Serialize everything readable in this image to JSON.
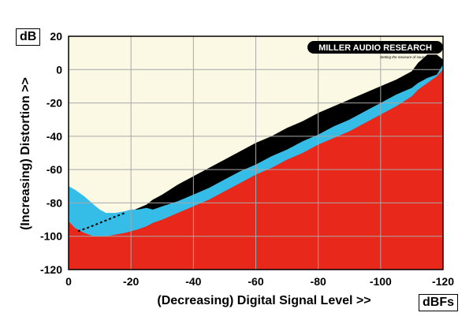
{
  "chart_data": {
    "type": "area",
    "title": "",
    "xlabel": "(Decreasing) Digital Signal Level >>",
    "ylabel": "(Increasing) Distortion >>",
    "x_unit": "dBFs",
    "y_unit": "dB",
    "xlim": [
      0,
      -120
    ],
    "ylim": [
      -120,
      20
    ],
    "x_ticks": [
      "0",
      "-20",
      "-40",
      "-60",
      "-80",
      "-100",
      "-120"
    ],
    "y_ticks": [
      "20",
      "0",
      "-20",
      "-40",
      "-60",
      "-80",
      "-100",
      "-120"
    ],
    "grid": true,
    "logo": {
      "brand": "MILLER AUDIO RESEARCH",
      "tagline": "Setting the measure of sound quality"
    },
    "colors": {
      "background": "#fbf8e3",
      "upper_band": "#000000",
      "middle_band": "#35bde8",
      "lower_area": "#e8281a",
      "dotted_line": "#000000"
    },
    "series": [
      {
        "x": [
          0,
          -2,
          -5,
          -8,
          -10,
          -12,
          -15,
          -18,
          -20,
          -22,
          -25,
          -27,
          -30,
          -35,
          -40,
          -45,
          -50,
          -55,
          -60,
          -65,
          -70,
          -75,
          -80,
          -85,
          -90,
          -95,
          -100,
          -105,
          -110,
          -112,
          -115,
          -118,
          -120
        ],
        "y": [
          -91,
          -95,
          -98,
          -100,
          -100,
          -100,
          -99,
          -98,
          -97,
          -96,
          -94,
          -92,
          -90,
          -86,
          -82,
          -78,
          -73,
          -68,
          -63,
          -59,
          -54,
          -50,
          -45,
          -41,
          -37,
          -32,
          -27,
          -22,
          -16,
          -12,
          -8,
          -4,
          0
        ]
      },
      {
        "x": [
          0,
          -2,
          -5,
          -8,
          -10,
          -12,
          -15,
          -18,
          -20,
          -22,
          -25,
          -27,
          -30,
          -35,
          -40,
          -45,
          -50,
          -55,
          -60,
          -65,
          -70,
          -75,
          -80,
          -85,
          -90,
          -95,
          -100,
          -105,
          -110,
          -112,
          -115,
          -118,
          -120
        ],
        "y": [
          -70,
          -72,
          -76,
          -81,
          -84,
          -86,
          -86,
          -85,
          -84,
          -84,
          -83,
          -84,
          -82,
          -79,
          -75,
          -71,
          -66,
          -61,
          -57,
          -52,
          -48,
          -43,
          -39,
          -34,
          -30,
          -25,
          -20,
          -15,
          -11,
          -8,
          -5,
          -3,
          3
        ]
      },
      {
        "x": [
          -18,
          -20,
          -25,
          -27,
          -30,
          -35,
          -40,
          -45,
          -50,
          -55,
          -60,
          -65,
          -70,
          -75,
          -80,
          -85,
          -90,
          -95,
          -100,
          -105,
          -110,
          -112,
          -115,
          -118,
          -120
        ],
        "y": [
          -86,
          -85,
          -81,
          -78,
          -75,
          -69,
          -64,
          -59,
          -54,
          -49,
          -44,
          -40,
          -35,
          -31,
          -26,
          -22,
          -18,
          -14,
          -10,
          -6,
          -1,
          4,
          9,
          9,
          6
        ]
      },
      {
        "x": [
          -3,
          -6,
          -10,
          -14,
          -18
        ],
        "y": [
          -97,
          -95,
          -92,
          -89,
          -86
        ]
      }
    ]
  }
}
